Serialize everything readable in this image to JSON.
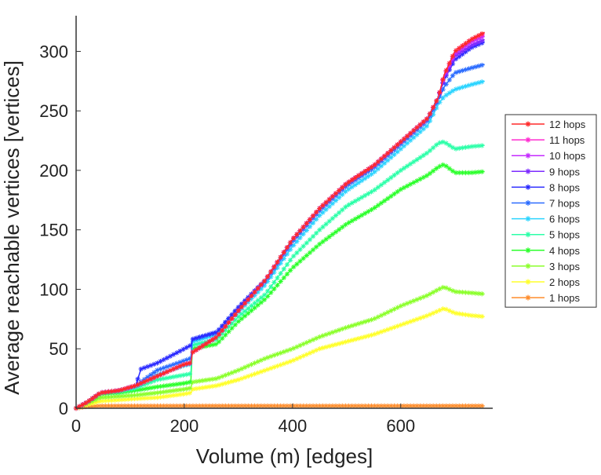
{
  "chart_data": {
    "type": "line",
    "title": "",
    "xlabel": "Volume (m) [edges]",
    "ylabel": "Average reachable vertices [vertices]",
    "xlim": [
      0,
      770
    ],
    "ylim": [
      0,
      330
    ],
    "x_ticks": [
      0,
      200,
      400,
      600
    ],
    "y_ticks": [
      0,
      50,
      100,
      150,
      200,
      250,
      300
    ],
    "grid": false,
    "legend_position": "right",
    "marker": "asterisk",
    "series": [
      {
        "name": "12 hops",
        "color": "#ff2a2a",
        "x": [
          0,
          20,
          45,
          80,
          110,
          150,
          200,
          212,
          215,
          260,
          300,
          350,
          400,
          450,
          500,
          550,
          600,
          650,
          670,
          680,
          700,
          730,
          755
        ],
        "y": [
          0,
          5,
          13,
          15,
          19,
          27,
          37,
          38,
          47,
          60,
          82,
          108,
          142,
          168,
          189,
          204,
          224,
          244,
          262,
          280,
          300,
          310,
          316
        ]
      },
      {
        "name": "11 hops",
        "color": "#ff2bd0",
        "x": [
          0,
          20,
          45,
          80,
          110,
          150,
          200,
          212,
          215,
          260,
          300,
          350,
          400,
          450,
          500,
          550,
          600,
          650,
          670,
          680,
          700,
          730,
          755
        ],
        "y": [
          0,
          5,
          13,
          15,
          19,
          27,
          37,
          38,
          47,
          60,
          82,
          108,
          142,
          168,
          189,
          204,
          224,
          244,
          262,
          280,
          300,
          310,
          315
        ]
      },
      {
        "name": "10 hops",
        "color": "#c42bff",
        "x": [
          0,
          20,
          45,
          80,
          110,
          150,
          200,
          212,
          215,
          260,
          300,
          350,
          400,
          450,
          500,
          550,
          600,
          650,
          670,
          680,
          700,
          730,
          755
        ],
        "y": [
          0,
          5,
          13,
          15,
          19,
          27,
          37,
          38,
          47,
          60,
          82,
          108,
          142,
          168,
          189,
          204,
          224,
          244,
          262,
          279,
          298,
          308,
          313
        ]
      },
      {
        "name": "9 hops",
        "color": "#7d2bff",
        "x": [
          0,
          20,
          45,
          80,
          110,
          150,
          200,
          212,
          215,
          260,
          300,
          350,
          400,
          450,
          500,
          550,
          600,
          650,
          670,
          680,
          700,
          730,
          755
        ],
        "y": [
          0,
          5,
          13,
          15,
          19,
          27,
          37,
          38,
          47,
          60,
          82,
          108,
          142,
          168,
          189,
          204,
          224,
          244,
          262,
          277,
          296,
          305,
          310
        ]
      },
      {
        "name": "8 hops",
        "color": "#2b2bff",
        "x": [
          0,
          20,
          45,
          80,
          110,
          120,
          150,
          200,
          212,
          215,
          260,
          300,
          350,
          400,
          450,
          500,
          550,
          600,
          650,
          670,
          680,
          700,
          730,
          755
        ],
        "y": [
          0,
          5,
          13,
          15,
          19,
          33,
          38,
          50,
          53,
          58,
          64,
          85,
          108,
          142,
          168,
          189,
          204,
          224,
          244,
          262,
          276,
          293,
          303,
          308
        ]
      },
      {
        "name": "7 hops",
        "color": "#2b6cff",
        "x": [
          0,
          20,
          45,
          80,
          110,
          150,
          200,
          212,
          215,
          260,
          300,
          350,
          400,
          450,
          500,
          550,
          600,
          650,
          670,
          680,
          700,
          730,
          755
        ],
        "y": [
          0,
          5,
          13,
          15,
          19,
          32,
          40,
          42,
          58,
          64,
          84,
          107,
          140,
          166,
          187,
          202,
          222,
          242,
          260,
          270,
          282,
          286,
          289
        ]
      },
      {
        "name": "6 hops",
        "color": "#2bd4ff",
        "x": [
          0,
          20,
          45,
          80,
          110,
          150,
          200,
          212,
          215,
          260,
          300,
          350,
          400,
          450,
          500,
          550,
          600,
          650,
          670,
          680,
          700,
          730,
          755
        ],
        "y": [
          0,
          5,
          13,
          15,
          18,
          28,
          36,
          37,
          56,
          62,
          81,
          104,
          136,
          162,
          183,
          198,
          218,
          238,
          256,
          262,
          268,
          272,
          275
        ]
      },
      {
        "name": "5 hops",
        "color": "#2bffa8",
        "x": [
          0,
          20,
          45,
          80,
          110,
          150,
          200,
          212,
          215,
          260,
          300,
          350,
          400,
          450,
          500,
          550,
          600,
          650,
          670,
          680,
          700,
          730,
          755
        ],
        "y": [
          0,
          5,
          13,
          14,
          17,
          24,
          28,
          29,
          53,
          58,
          77,
          96,
          127,
          150,
          170,
          183,
          200,
          215,
          223,
          224,
          218,
          220,
          221
        ]
      },
      {
        "name": "4 hops",
        "color": "#2bff2b",
        "x": [
          0,
          20,
          45,
          80,
          110,
          150,
          200,
          212,
          215,
          260,
          300,
          350,
          400,
          450,
          500,
          550,
          600,
          650,
          670,
          680,
          700,
          730,
          755
        ],
        "y": [
          0,
          5,
          12,
          13,
          15,
          18,
          21,
          22,
          50,
          54,
          73,
          92,
          118,
          138,
          155,
          168,
          184,
          196,
          203,
          205,
          198,
          198,
          199
        ]
      },
      {
        "name": "3 hops",
        "color": "#8bff2b",
        "x": [
          0,
          20,
          45,
          80,
          110,
          150,
          200,
          212,
          215,
          260,
          300,
          350,
          400,
          450,
          500,
          550,
          600,
          650,
          670,
          680,
          700,
          730,
          755
        ],
        "y": [
          0,
          4,
          9,
          10,
          11,
          13,
          16,
          17,
          22,
          25,
          32,
          42,
          50,
          60,
          68,
          75,
          86,
          95,
          100,
          102,
          98,
          97,
          96
        ]
      },
      {
        "name": "2 hops",
        "color": "#ffff2b",
        "x": [
          0,
          20,
          45,
          80,
          110,
          150,
          200,
          212,
          215,
          260,
          300,
          350,
          400,
          450,
          500,
          550,
          600,
          650,
          670,
          680,
          700,
          730,
          755
        ],
        "y": [
          0,
          3,
          6,
          7,
          8,
          9,
          12,
          13,
          16,
          19,
          24,
          32,
          40,
          50,
          56,
          62,
          70,
          78,
          82,
          84,
          80,
          78,
          77
        ]
      },
      {
        "name": "1 hops",
        "color": "#ff8c2b",
        "x": [
          0,
          20,
          45,
          80,
          110,
          150,
          200,
          212,
          215,
          260,
          300,
          350,
          400,
          450,
          500,
          550,
          600,
          650,
          670,
          680,
          700,
          730,
          755
        ],
        "y": [
          0,
          1.5,
          2,
          2,
          2,
          2,
          2,
          2,
          2,
          2,
          2,
          2,
          2,
          2,
          2,
          2,
          2,
          2,
          2,
          2,
          2,
          2,
          2
        ]
      }
    ]
  }
}
